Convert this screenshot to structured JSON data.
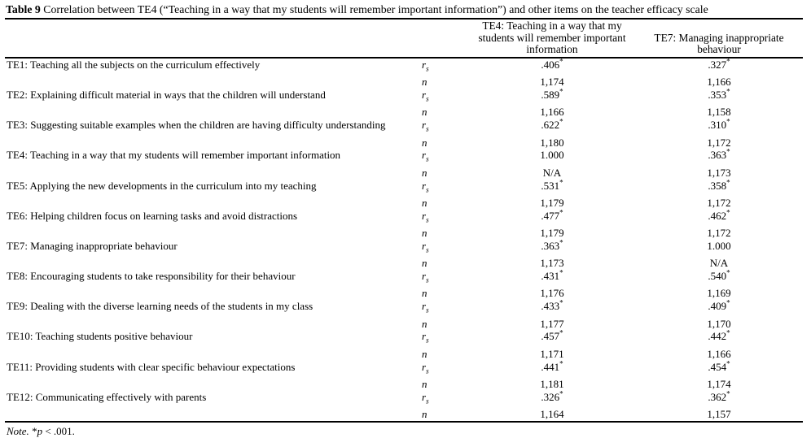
{
  "title": {
    "label": "Table 9",
    "caption": "Correlation between TE4 (“Teaching in a way that my students will remember important information”) and other items on the teacher efficacy scale"
  },
  "table": {
    "stat_r_base": "r",
    "stat_r_sub": "s",
    "stat_n": "n",
    "columns": [
      {
        "name": "TE4",
        "lines": [
          "TE4: Teaching in a way that my",
          "students will remember important",
          "information"
        ]
      },
      {
        "name": "TE7",
        "lines": [
          "TE7: Managing inappropriate",
          "behaviour"
        ]
      }
    ],
    "rows": [
      {
        "label": "TE1: Teaching all the subjects on the curriculum effectively",
        "te4_r": ".406*",
        "te4_n": "1,174",
        "te7_r": ".327*",
        "te7_n": "1,166"
      },
      {
        "label": "TE2: Explaining difficult material in ways that the children will understand",
        "te4_r": ".589*",
        "te4_n": "1,166",
        "te7_r": ".353*",
        "te7_n": "1,158"
      },
      {
        "label": "TE3: Suggesting suitable examples when the children are having difficulty understanding",
        "te4_r": ".622*",
        "te4_n": "1,180",
        "te7_r": ".310*",
        "te7_n": "1,172"
      },
      {
        "label": "TE4: Teaching in a way that my students will remember important information",
        "te4_r": "1.000",
        "te4_n": "N/A",
        "te7_r": ".363*",
        "te7_n": "1,173"
      },
      {
        "label": "TE5: Applying the new developments in the curriculum into my teaching",
        "te4_r": ".531*",
        "te4_n": "1,179",
        "te7_r": ".358*",
        "te7_n": "1,172"
      },
      {
        "label": "TE6: Helping children focus on learning tasks and avoid distractions",
        "te4_r": ".477*",
        "te4_n": "1,179",
        "te7_r": ".462*",
        "te7_n": "1,172"
      },
      {
        "label": "TE7: Managing inappropriate behaviour",
        "te4_r": ".363*",
        "te4_n": "1,173",
        "te7_r": "1.000",
        "te7_n": "N/A"
      },
      {
        "label": "TE8: Encouraging students to take responsibility for their behaviour",
        "te4_r": ".431*",
        "te4_n": "1,176",
        "te7_r": ".540*",
        "te7_n": "1,169"
      },
      {
        "label": "TE9: Dealing with the diverse learning needs of the students in my class",
        "te4_r": ".433*",
        "te4_n": "1,177",
        "te7_r": ".409*",
        "te7_n": "1,170"
      },
      {
        "label": "TE10: Teaching students positive behaviour",
        "te4_r": ".457*",
        "te4_n": "1,171",
        "te7_r": ".442*",
        "te7_n": "1,166"
      },
      {
        "label": "TE11: Providing students with clear specific behaviour expectations",
        "te4_r": ".441*",
        "te4_n": "1,181",
        "te7_r": ".454*",
        "te7_n": "1,174"
      },
      {
        "label": "TE12: Communicating effectively with parents",
        "te4_r": ".326*",
        "te4_n": "1,164",
        "te7_r": ".362*",
        "te7_n": "1,157"
      }
    ]
  },
  "note": {
    "prefix": "Note.",
    "star": " *",
    "p": "p",
    "suffix": " < .001."
  }
}
